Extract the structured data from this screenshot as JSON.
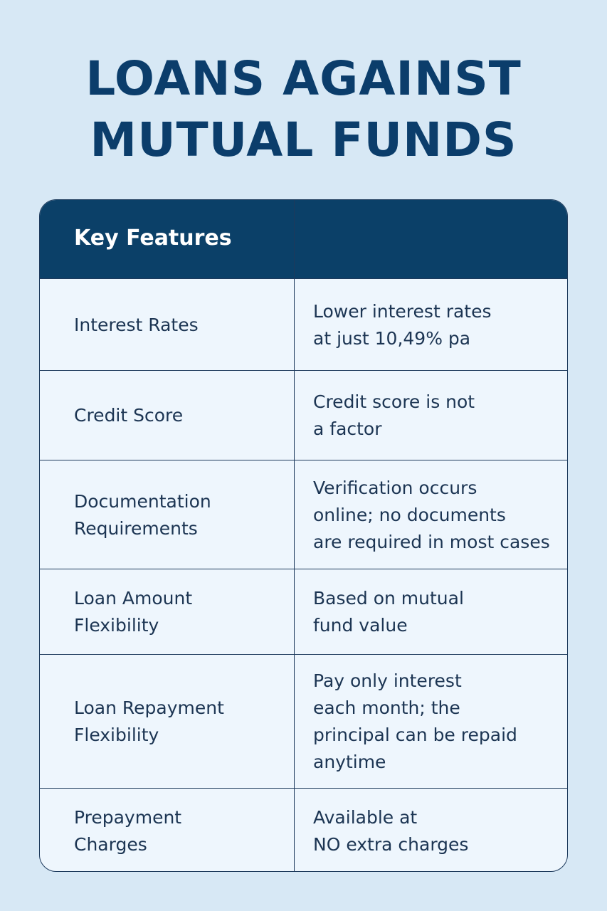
{
  "header": {
    "title": [
      "LOANS AGAINST",
      "MUTUAL FUNDS"
    ]
  },
  "table": {
    "header": "Key Features",
    "rows": [
      {
        "feature": [
          "Interest Rates"
        ],
        "detail": [
          "Lower interest rates",
          "at just 10,49% pa"
        ]
      },
      {
        "feature": [
          "Credit Score"
        ],
        "detail": [
          "Credit score is not",
          "a factor"
        ]
      },
      {
        "feature": [
          "Documentation",
          "Requirements"
        ],
        "detail": [
          "Verification occurs",
          "online; no documents",
          "are required in most cases"
        ]
      },
      {
        "feature": [
          "Loan Amount",
          "Flexibility"
        ],
        "detail": [
          "Based on mutual",
          "fund value"
        ]
      },
      {
        "feature": [
          "Loan Repayment",
          "Flexibility"
        ],
        "detail": [
          "Pay only interest",
          "each month; the",
          "principal can be repaid",
          "anytime"
        ]
      },
      {
        "feature": [
          "Prepayment",
          "Charges"
        ],
        "detail": [
          "Available at",
          "NO extra charges"
        ]
      }
    ]
  }
}
